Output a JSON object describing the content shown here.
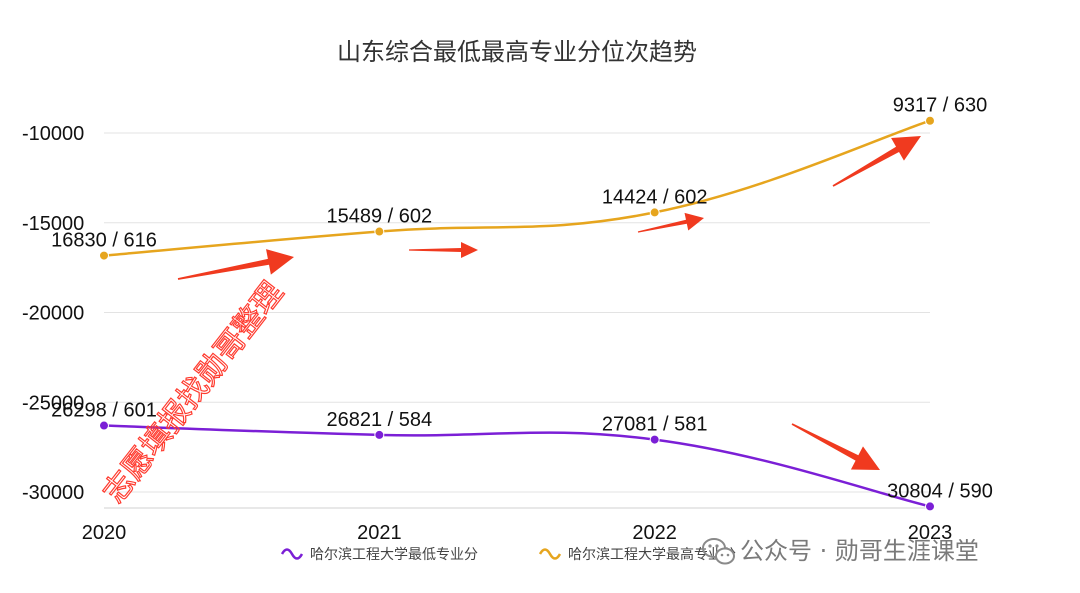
{
  "chart_data": {
    "type": "line",
    "title": "山东综合最低最高专业分位次趋势",
    "categories": [
      "2020",
      "2021",
      "2022",
      "2023"
    ],
    "ylim": [
      -30000,
      -8000
    ],
    "yticks": [
      -10000,
      -15000,
      -20000,
      -25000,
      -30000
    ],
    "ytick_labels": [
      "-10000",
      "-15000",
      "-20000",
      "-25000",
      "-30000"
    ],
    "grid": true,
    "legend_position": "bottom-center",
    "series": [
      {
        "name": "哈尔滨工程大学最低专业分",
        "color": "#7b1fd6",
        "values": [
          -26298,
          -26821,
          -27081,
          -30804
        ],
        "labels": [
          "26298 / 601",
          "26821 / 584",
          "27081 / 581",
          "30804 / 590"
        ]
      },
      {
        "name": "哈尔滨工程大学最高专业分",
        "color": "#e6a51e",
        "values": [
          -16830,
          -15489,
          -14424,
          -9317
        ],
        "labels": [
          "16830 / 616",
          "15489 / 602",
          "14424 / 602",
          "9317 / 630"
        ]
      }
    ]
  },
  "overlay": {
    "diagonal_watermark": "志愿填报找勋哥整理",
    "brand_watermark": "公众号 · 勋哥生涯课堂",
    "brand_icon": "wechat-icon",
    "arrow_color": "#f03a1f"
  }
}
